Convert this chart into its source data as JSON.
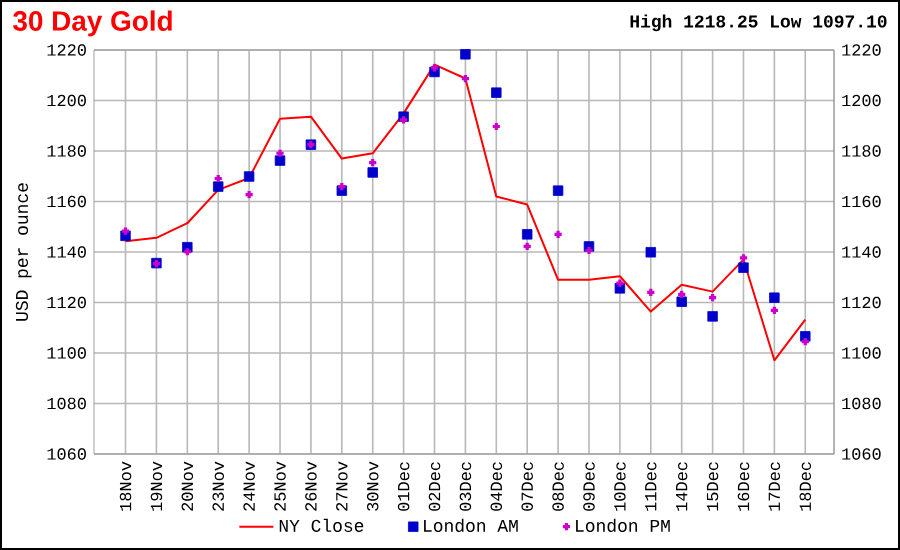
{
  "chart_data": {
    "type": "line",
    "title": "30 Day Gold",
    "ylabel": "USD per ounce",
    "annotations": [
      "High 1218.25 Low 1097.10"
    ],
    "categories": [
      "18Nov",
      "19Nov",
      "20Nov",
      "23Nov",
      "24Nov",
      "25Nov",
      "26Nov",
      "27Nov",
      "30Nov",
      "01Dec",
      "02Dec",
      "03Dec",
      "04Dec",
      "07Dec",
      "08Dec",
      "09Dec",
      "10Dec",
      "11Dec",
      "14Dec",
      "15Dec",
      "16Dec",
      "17Dec",
      "18Dec"
    ],
    "series": [
      {
        "name": "NY Close",
        "type": "line",
        "marker": "none",
        "color": "#ff0000",
        "values": [
          1144.3,
          1145.6,
          1151.4,
          1164.6,
          1169.3,
          1192.8,
          1193.6,
          1177,
          1179.1,
          1194.9,
          1214.2,
          1208.7,
          1162,
          1158.8,
          1129,
          1129,
          1130.4,
          1116.4,
          1127,
          1124.3,
          1137,
          1097.1,
          1113.2
        ]
      },
      {
        "name": "London AM",
        "type": "scatter",
        "marker": "square",
        "color": "#0000cc",
        "values": [
          1146.4,
          1135.6,
          1141.9,
          1165.9,
          1169.9,
          1176.2,
          1182.5,
          1164.3,
          1171.5,
          1193.6,
          1211.3,
          1218.3,
          1203.1,
          1147,
          1164.3,
          1142.2,
          1125.6,
          1139.9,
          1120.3,
          1114.5,
          1133.8,
          1121.9,
          1106.6
        ]
      },
      {
        "name": "London PM",
        "type": "scatter",
        "marker": "cross",
        "color": "#cc00cc",
        "values": [
          1148.3,
          1135.4,
          1140.1,
          1169.1,
          1162.7,
          1179.1,
          1182.5,
          1165.9,
          1175.4,
          1192.3,
          1212.9,
          1208.7,
          1189.7,
          1142.2,
          1147,
          1140.6,
          1127.7,
          1124,
          1123.2,
          1121.9,
          1137.7,
          1116.9,
          1104.5
        ]
      }
    ],
    "ylim": [
      1060,
      1220
    ],
    "yticks": [
      1060,
      1080,
      1100,
      1120,
      1140,
      1160,
      1180,
      1200,
      1220
    ],
    "y2lim": [
      1060,
      1220
    ],
    "y2ticks": [
      1060,
      1080,
      1100,
      1120,
      1140,
      1160,
      1180,
      1200,
      1220
    ],
    "grid": true,
    "legend": "bottom"
  }
}
